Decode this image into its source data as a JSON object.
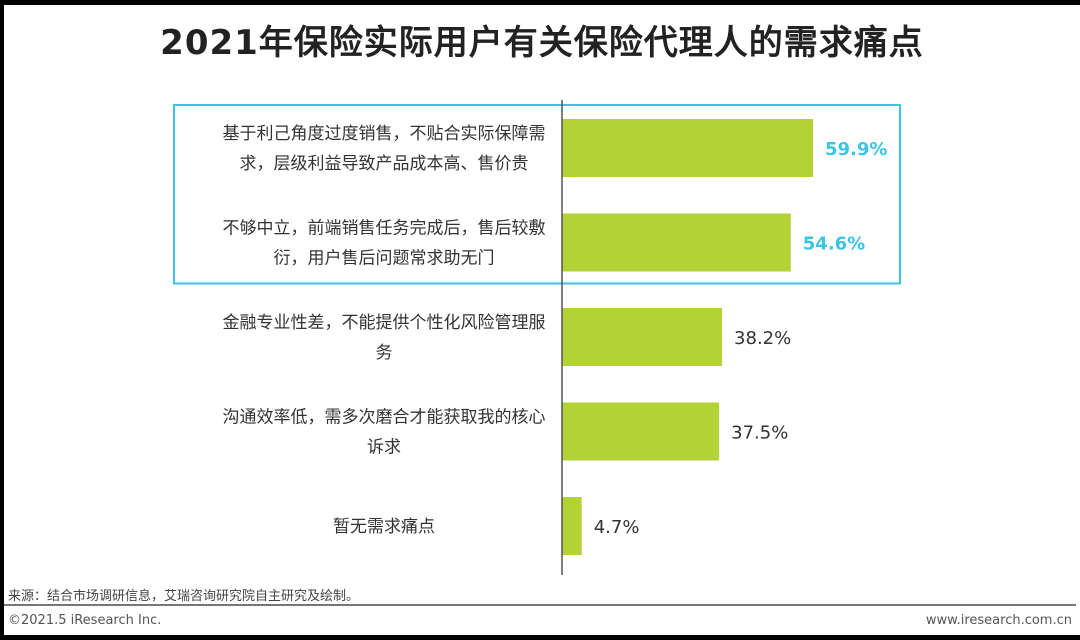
{
  "chart_data": {
    "type": "bar",
    "orientation": "horizontal",
    "title": "2021年保险实际用户有关保险代理人的需求痛点",
    "categories": [
      [
        "基于利己角度过度销售，不贴合实际保障需",
        "求，层级利益导致产品成本高、售价贵"
      ],
      [
        "不够中立，前端销售任务完成后，售后较敷",
        "衍，用户售后问题常求助无门"
      ],
      [
        "金融专业性差，不能提供个性化风险管理服",
        "务"
      ],
      [
        "沟通效率低，需多次磨合才能获取我的核心",
        "诉求"
      ],
      [
        "暂无需求痛点"
      ]
    ],
    "values": [
      59.9,
      54.6,
      38.2,
      37.5,
      4.7
    ],
    "value_labels": [
      "59.9%",
      "54.6%",
      "38.2%",
      "37.5%",
      "4.7%"
    ],
    "highlighted": [
      true,
      true,
      false,
      false,
      false
    ],
    "xlim": [
      0,
      100
    ],
    "unit": "%"
  },
  "colors": {
    "bar": "#b2d235",
    "highlight": "#3cc4e6",
    "label": "#333333",
    "axis": "#555555"
  },
  "footer": {
    "source": "来源：结合市场调研信息，艾瑞咨询研究院自主研究及绘制。",
    "copyright": "©2021.5 iResearch Inc.",
    "website": "www.iresearch.com.cn"
  }
}
